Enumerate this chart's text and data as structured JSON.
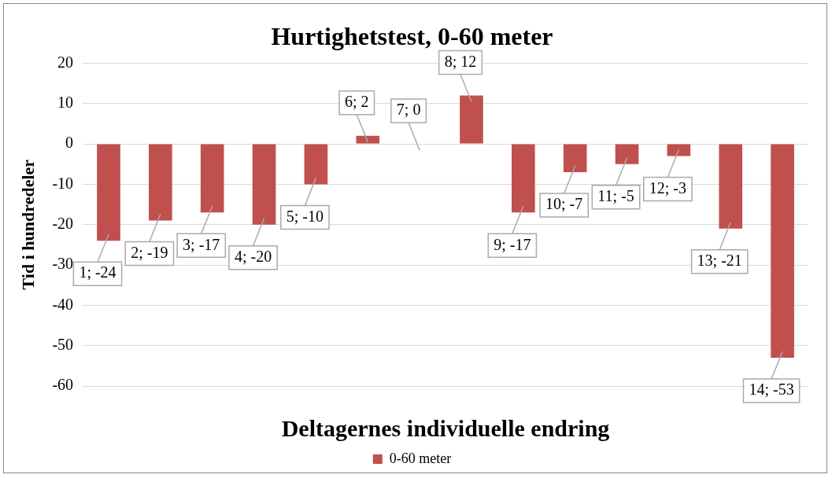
{
  "chart_data": {
    "type": "bar",
    "title": "Hurtighetstest, 0-60 meter",
    "xlabel": "Deltagernes individuelle endring",
    "ylabel": "Tid i hundredeler",
    "categories": [
      null,
      null,
      null,
      null,
      null,
      null,
      null,
      null,
      null,
      null,
      null,
      null,
      null,
      null
    ],
    "series": [
      {
        "name": "0-60 meter",
        "color": "#c0504d",
        "values": [
          -24,
          -19,
          -17,
          -20,
          -10,
          2,
          0,
          12,
          -17,
          -7,
          -5,
          -3,
          -21,
          -53
        ],
        "value_labels": [
          "1; -24",
          "2; -19",
          "3; -17",
          "4; -20",
          "5; -10",
          "6; 2",
          "7; 0",
          "8; 12",
          "9; -17",
          "10; -7",
          "11; -5",
          "12; -3",
          "13; -21",
          "14; -53"
        ]
      }
    ],
    "ylim": [
      -60,
      20
    ],
    "yticks": [
      -60,
      -50,
      -40,
      -30,
      -20,
      -10,
      0,
      10,
      20
    ],
    "grid": "y",
    "legend": "bottom",
    "tick_labels": "y"
  }
}
